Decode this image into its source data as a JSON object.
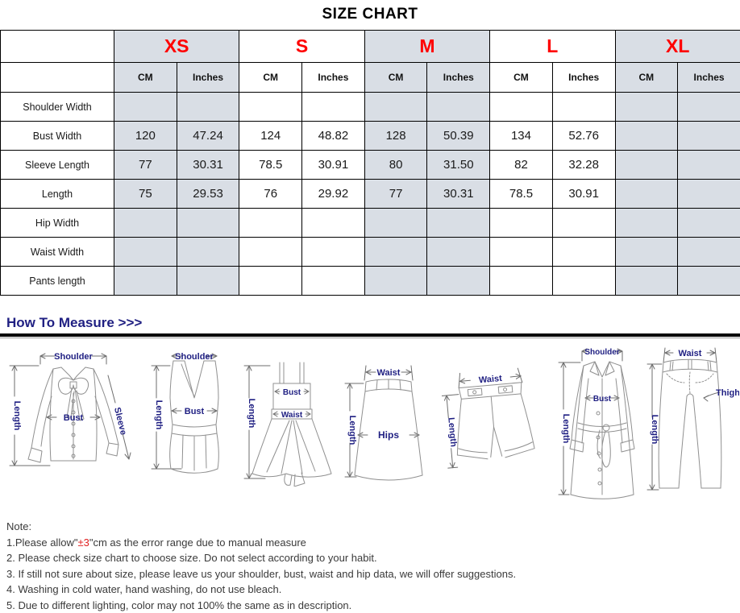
{
  "colors": {
    "shaded_cell": "#d9dee5",
    "size_label": "#ff0000",
    "measure_heading": "#1f1f82",
    "figure_label": "#28289a",
    "note_highlight": "#e02020"
  },
  "size_chart": {
    "title": "SIZE CHART",
    "sizes": [
      "XS",
      "S",
      "M",
      "L",
      "XL"
    ],
    "unit_headers": [
      "CM",
      "Inches"
    ],
    "rows": [
      {
        "label": "Shoulder Width",
        "values": [
          "",
          "",
          "",
          "",
          "",
          "",
          "",
          "",
          "",
          ""
        ]
      },
      {
        "label": "Bust Width",
        "values": [
          "120",
          "47.24",
          "124",
          "48.82",
          "128",
          "50.39",
          "134",
          "52.76",
          "",
          ""
        ]
      },
      {
        "label": "Sleeve Length",
        "values": [
          "77",
          "30.31",
          "78.5",
          "30.91",
          "80",
          "31.50",
          "82",
          "32.28",
          "",
          ""
        ]
      },
      {
        "label": "Length",
        "values": [
          "75",
          "29.53",
          "76",
          "29.92",
          "77",
          "30.31",
          "78.5",
          "30.91",
          "",
          ""
        ]
      },
      {
        "label": "Hip Width",
        "values": [
          "",
          "",
          "",
          "",
          "",
          "",
          "",
          "",
          "",
          ""
        ]
      },
      {
        "label": "Waist Width",
        "values": [
          "",
          "",
          "",
          "",
          "",
          "",
          "",
          "",
          "",
          ""
        ]
      },
      {
        "label": "Pants length",
        "values": [
          "",
          "",
          "",
          "",
          "",
          "",
          "",
          "",
          "",
          ""
        ]
      }
    ]
  },
  "measure": {
    "heading": "How To Measure >>>",
    "figures": [
      {
        "name": "blouse",
        "labels": {
          "shoulder": "Shoulder",
          "length": "Length",
          "bust": "Bust",
          "sleeve": "Sleeve"
        }
      },
      {
        "name": "tank-top",
        "labels": {
          "shoulder": "Shoulder",
          "length": "Length",
          "bust": "Bust"
        }
      },
      {
        "name": "slip-dress",
        "labels": {
          "length": "Length",
          "bust": "Bust",
          "waist": "Waist"
        }
      },
      {
        "name": "skirt",
        "labels": {
          "waist": "Waist",
          "length": "Length",
          "hips": "Hips"
        }
      },
      {
        "name": "shorts",
        "labels": {
          "waist": "Waist",
          "length": "Length"
        }
      },
      {
        "name": "trench-coat",
        "labels": {
          "shoulder": "Shoulder",
          "length": "Length",
          "bust": "Bust"
        }
      },
      {
        "name": "pants",
        "labels": {
          "waist": "Waist",
          "length": "Length",
          "thigh": "Thigh"
        }
      }
    ]
  },
  "notes": {
    "heading": "Note:",
    "items": [
      {
        "prefix": "1.Please allow\"",
        "highlight": "±3",
        "suffix": "\"cm as the error range due to manual measure"
      },
      {
        "text": "2. Please check size chart to choose size. Do not select according to your habit."
      },
      {
        "text": "3. If still not sure about size, please leave us your shoulder, bust, waist and hip data, we will offer suggestions."
      },
      {
        "text": "4. Washing in cold water, hand washing, do not use bleach."
      },
      {
        "text": "5. Due to different lighting, color may not 100% the same as in description."
      }
    ]
  }
}
